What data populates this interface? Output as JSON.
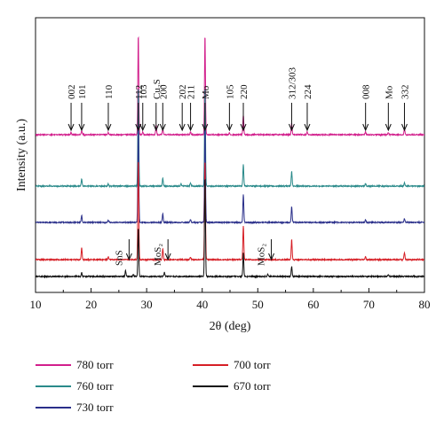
{
  "chart_data": {
    "type": "line",
    "xlabel": "2θ (deg)",
    "ylabel": "Intensity (a.u.)",
    "xlim": [
      10,
      80
    ],
    "xticks": [
      10,
      20,
      30,
      40,
      50,
      60,
      70,
      80
    ],
    "grid": false,
    "legend_position": "bottom",
    "series": [
      {
        "name": "780 torr",
        "color": "#d21f8c",
        "peaks": [
          [
            16.4,
            3
          ],
          [
            18.3,
            6
          ],
          [
            23.1,
            3
          ],
          [
            28.5,
            140
          ],
          [
            29.3,
            4
          ],
          [
            31.7,
            14
          ],
          [
            32.9,
            8
          ],
          [
            37.9,
            4
          ],
          [
            40.5,
            140
          ],
          [
            44.9,
            3
          ],
          [
            47.4,
            28
          ],
          [
            56.1,
            16
          ],
          [
            58.9,
            4
          ],
          [
            69.4,
            4
          ],
          [
            73.5,
            3
          ],
          [
            76.4,
            8
          ]
        ]
      },
      {
        "name": "760 torr",
        "color": "#2a8a8a",
        "peaks": [
          [
            18.3,
            10
          ],
          [
            23.1,
            3
          ],
          [
            28.5,
            140
          ],
          [
            32.9,
            11
          ],
          [
            36.2,
            3
          ],
          [
            37.9,
            4
          ],
          [
            40.5,
            140
          ],
          [
            47.4,
            30
          ],
          [
            56.1,
            20
          ],
          [
            69.4,
            4
          ],
          [
            76.4,
            5
          ]
        ]
      },
      {
        "name": "730 torr",
        "color": "#2a2f8a",
        "peaks": [
          [
            18.3,
            10
          ],
          [
            23.1,
            3
          ],
          [
            28.5,
            140
          ],
          [
            32.9,
            12
          ],
          [
            37.9,
            4
          ],
          [
            40.5,
            140
          ],
          [
            47.4,
            40
          ],
          [
            56.1,
            22
          ],
          [
            69.4,
            4
          ],
          [
            76.4,
            5
          ]
        ]
      },
      {
        "name": "700 torr",
        "color": "#d61f26",
        "peaks": [
          [
            18.3,
            16
          ],
          [
            23.1,
            4
          ],
          [
            28.5,
            140
          ],
          [
            32.9,
            15
          ],
          [
            37.9,
            4
          ],
          [
            40.5,
            140
          ],
          [
            47.4,
            48
          ],
          [
            56.1,
            28
          ],
          [
            69.4,
            4
          ],
          [
            76.4,
            10
          ]
        ]
      },
      {
        "name": "670 torr",
        "color": "#111111",
        "peaks": [
          [
            18.3,
            5
          ],
          [
            26.2,
            8
          ],
          [
            27.6,
            3
          ],
          [
            28.5,
            68
          ],
          [
            33.2,
            6
          ],
          [
            40.5,
            140
          ],
          [
            47.4,
            33
          ],
          [
            51.8,
            3
          ],
          [
            56.1,
            14
          ],
          [
            73.5,
            3
          ]
        ]
      }
    ],
    "annotations": [
      {
        "label": "002",
        "x": 16.4,
        "color": "#111111"
      },
      {
        "label": "101",
        "x": 18.3,
        "color": "#111111"
      },
      {
        "label": "110",
        "x": 23.1,
        "color": "#111111"
      },
      {
        "label": "112",
        "x": 28.5,
        "color": "#111111"
      },
      {
        "label": "103",
        "x": 29.3,
        "color": "#111111"
      },
      {
        "label": "Cu₂S",
        "x": 31.7,
        "color": "#d21f26"
      },
      {
        "label": "200",
        "x": 32.9,
        "color": "#111111"
      },
      {
        "label": "202",
        "x": 36.4,
        "color": "#111111"
      },
      {
        "label": "211",
        "x": 37.9,
        "color": "#111111"
      },
      {
        "label": "Mo",
        "x": 40.5,
        "color": "#d21f26"
      },
      {
        "label": "105",
        "x": 44.9,
        "color": "#111111"
      },
      {
        "label": "220",
        "x": 47.4,
        "color": "#111111"
      },
      {
        "label": "312/303",
        "x": 56.1,
        "color": "#111111"
      },
      {
        "label": "224",
        "x": 58.9,
        "color": "#111111"
      },
      {
        "label": "008",
        "x": 69.4,
        "color": "#111111"
      },
      {
        "label": "Mo",
        "x": 73.5,
        "color": "#d21f26"
      },
      {
        "label": "332",
        "x": 76.4,
        "color": "#111111"
      },
      {
        "label": "SnS",
        "x": 26.2,
        "color": "#d21f26"
      },
      {
        "label": "MoS₂",
        "x": 33.2,
        "color": "#d21f26"
      },
      {
        "label": "MoS₂",
        "x": 51.8,
        "color": "#d21f26"
      }
    ]
  }
}
